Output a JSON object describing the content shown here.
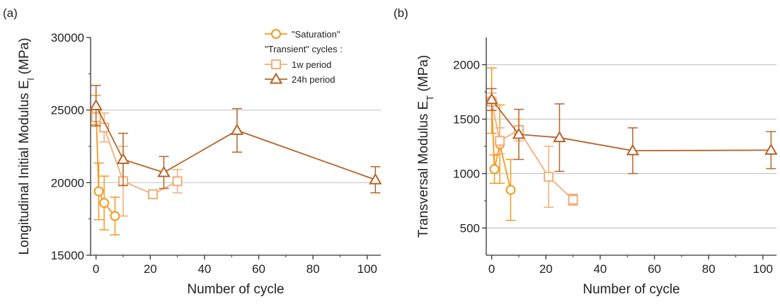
{
  "figure": {
    "panels": [
      "(a)",
      "(b)"
    ]
  },
  "chart_data": [
    {
      "type": "line",
      "panel_label": "(a)",
      "xlabel": "Number of cycle",
      "ylabel_main": "Longitudinal Initial Modulus E",
      "ylabel_sub": "l",
      "ylabel_unit": " (MPa)",
      "xlim": [
        -2,
        105
      ],
      "ylim": [
        15000,
        30000
      ],
      "xticks": [
        0,
        20,
        40,
        60,
        80,
        100
      ],
      "yticks": [
        15000,
        20000,
        25000,
        30000
      ],
      "grid_y": [
        20000,
        25000
      ],
      "legend": {
        "placement": "top-right",
        "heading": "\"Transient\" cycles :"
      },
      "series": [
        {
          "name": "\"Saturation\"",
          "marker": "circle",
          "filled": false,
          "color": "#F39A1E",
          "points": [
            {
              "x": 0,
              "y": 25000,
              "err": 1000
            },
            {
              "x": 1,
              "y": 19400,
              "err": 1950
            },
            {
              "x": 3,
              "y": 18600,
              "err": 1850
            },
            {
              "x": 7,
              "y": 17700,
              "err": 1300
            }
          ]
        },
        {
          "name": "1w period",
          "marker": "square",
          "filled": false,
          "color": "#F2AE78",
          "points": [
            {
              "x": 0,
              "y": 24500,
              "err": 600
            },
            {
              "x": 3,
              "y": 23800,
              "err": 1000
            },
            {
              "x": 10,
              "y": 20100,
              "err": 2400
            },
            {
              "x": 21,
              "y": 19200,
              "err": 300
            },
            {
              "x": 30,
              "y": 20100,
              "err": 800
            }
          ]
        },
        {
          "name": "24h period",
          "marker": "triangle",
          "filled": false,
          "color": "#B5652A",
          "points": [
            {
              "x": 0,
              "y": 25300,
              "err": 1400
            },
            {
              "x": 10,
              "y": 21600,
              "err": 1800
            },
            {
              "x": 25,
              "y": 20700,
              "err": 1100
            },
            {
              "x": 52,
              "y": 23600,
              "err": 1500
            },
            {
              "x": 103,
              "y": 20200,
              "err": 900
            }
          ]
        }
      ]
    },
    {
      "type": "line",
      "panel_label": "(b)",
      "xlabel": "Number of cycle",
      "ylabel_main": "Transversal Modulus E",
      "ylabel_sub": "T",
      "ylabel_unit": " (MPa)",
      "xlim": [
        -2,
        105
      ],
      "ylim": [
        250,
        2250
      ],
      "xticks": [
        0,
        20,
        40,
        60,
        80,
        100
      ],
      "yticks": [
        500,
        1000,
        1500,
        2000
      ],
      "grid_y": [
        500,
        1000,
        1500,
        2000
      ],
      "series": [
        {
          "name": "\"Saturation\"",
          "marker": "circle",
          "filled": false,
          "color": "#F39A1E",
          "points": [
            {
              "x": 0,
              "y": 1670,
              "err": 300
            },
            {
              "x": 1,
              "y": 1040,
              "err": 130
            },
            {
              "x": 3,
              "y": 1270,
              "err": 360
            },
            {
              "x": 7,
              "y": 850,
              "err": 280
            }
          ]
        },
        {
          "name": "1w period",
          "marker": "square",
          "filled": false,
          "color": "#F2AE78",
          "points": [
            {
              "x": 0,
              "y": 1660,
              "err": 80
            },
            {
              "x": 3,
              "y": 1300,
              "err": 120
            },
            {
              "x": 10,
              "y": 1400,
              "err": 100
            },
            {
              "x": 21,
              "y": 970,
              "err": 280
            },
            {
              "x": 30,
              "y": 760,
              "err": 50
            }
          ]
        },
        {
          "name": "24h period",
          "marker": "triangle",
          "filled": false,
          "color": "#B5652A",
          "points": [
            {
              "x": 0,
              "y": 1680,
              "err": 100
            },
            {
              "x": 10,
              "y": 1360,
              "err": 230
            },
            {
              "x": 25,
              "y": 1330,
              "err": 310
            },
            {
              "x": 52,
              "y": 1210,
              "err": 210
            },
            {
              "x": 103,
              "y": 1215,
              "err": 170
            }
          ]
        }
      ]
    }
  ]
}
